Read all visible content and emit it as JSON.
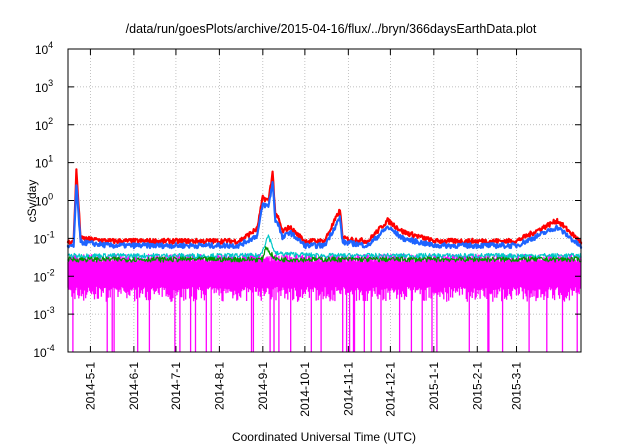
{
  "chart_data": {
    "type": "line",
    "title": "/data/run/goesPlots/archive/2015-04-16/flux/../bryn/366daysEarthData.plot",
    "xlabel": "Coordinated Universal Time (UTC)",
    "ylabel": "cSv/day",
    "yscale": "log",
    "ylim": [
      0.0001,
      10000
    ],
    "xlim": [
      "2014-04-15",
      "2015-04-16"
    ],
    "grid": true,
    "x_ticks": [
      "2014-5-1",
      "2014-6-1",
      "2014-7-1",
      "2014-8-1",
      "2014-9-1",
      "2014-10-1",
      "2014-11-1",
      "2014-12-1",
      "2015-1-1",
      "2015-2-1",
      "2015-3-1"
    ],
    "y_ticks": [
      {
        "base": "10",
        "exp": "-4",
        "value": 0.0001
      },
      {
        "base": "10",
        "exp": "-3",
        "value": 0.001
      },
      {
        "base": "10",
        "exp": "-2",
        "value": 0.01
      },
      {
        "base": "10",
        "exp": "-1",
        "value": 0.1
      },
      {
        "base": "10",
        "exp": "0",
        "value": 1
      },
      {
        "base": "10",
        "exp": "1",
        "value": 10
      },
      {
        "base": "10",
        "exp": "2",
        "value": 100
      },
      {
        "base": "10",
        "exp": "3",
        "value": 1000
      },
      {
        "base": "10",
        "exp": "4",
        "value": 10000
      }
    ],
    "series": [
      {
        "color": "#ff0000",
        "x": [
          "2014-04-15",
          "2014-04-19",
          "2014-04-21",
          "2014-04-24",
          "2014-05-15",
          "2014-06-15",
          "2014-07-15",
          "2014-08-15",
          "2014-08-28",
          "2014-09-01",
          "2014-09-05",
          "2014-09-08",
          "2014-09-10",
          "2014-09-12",
          "2014-09-15",
          "2014-09-20",
          "2014-10-01",
          "2014-10-15",
          "2014-10-26",
          "2014-10-28",
          "2014-11-15",
          "2014-11-29",
          "2014-12-10",
          "2015-01-01",
          "2015-02-01",
          "2015-03-01",
          "2015-03-30",
          "2015-04-16"
        ],
        "values": [
          0.08,
          0.08,
          6.0,
          0.1,
          0.085,
          0.085,
          0.085,
          0.085,
          0.18,
          1.2,
          1.0,
          5.5,
          0.4,
          0.35,
          0.15,
          0.2,
          0.085,
          0.085,
          0.55,
          0.1,
          0.085,
          0.3,
          0.15,
          0.085,
          0.085,
          0.085,
          0.3,
          0.08
        ]
      },
      {
        "color": "#1e64ff",
        "x": [
          "2014-04-15",
          "2014-04-19",
          "2014-04-21",
          "2014-04-24",
          "2014-05-15",
          "2014-06-15",
          "2014-07-15",
          "2014-08-15",
          "2014-08-28",
          "2014-09-01",
          "2014-09-05",
          "2014-09-08",
          "2014-09-10",
          "2014-09-12",
          "2014-09-15",
          "2014-09-20",
          "2014-10-01",
          "2014-10-15",
          "2014-10-26",
          "2014-10-28",
          "2014-11-15",
          "2014-11-29",
          "2014-12-10",
          "2015-01-01",
          "2015-02-01",
          "2015-03-01",
          "2015-03-30",
          "2015-04-16"
        ],
        "values": [
          0.06,
          0.06,
          2.5,
          0.08,
          0.065,
          0.065,
          0.065,
          0.065,
          0.12,
          0.8,
          0.7,
          3.0,
          0.3,
          0.25,
          0.1,
          0.15,
          0.065,
          0.065,
          0.35,
          0.08,
          0.065,
          0.2,
          0.1,
          0.065,
          0.065,
          0.065,
          0.2,
          0.06
        ]
      },
      {
        "color": "#00c8c8",
        "x": [
          "2014-04-15",
          "2014-05-15",
          "2014-08-30",
          "2014-09-05",
          "2014-09-10",
          "2014-10-15",
          "2015-01-01",
          "2015-04-16"
        ],
        "values": [
          0.035,
          0.035,
          0.035,
          0.12,
          0.04,
          0.035,
          0.035,
          0.035
        ]
      },
      {
        "color": "#009600",
        "x": [
          "2014-04-15",
          "2014-09-01",
          "2014-09-03",
          "2014-09-10",
          "2015-04-16"
        ],
        "values": [
          0.028,
          0.028,
          0.06,
          0.028,
          0.028
        ]
      },
      {
        "color": "#ff00ff",
        "type": "band",
        "x": [
          "2014-04-15",
          "2015-04-16"
        ],
        "upper": [
          0.03,
          0.03
        ],
        "lower": [
          0.0035,
          0.0035
        ],
        "dips_to": 0.0001
      }
    ]
  }
}
